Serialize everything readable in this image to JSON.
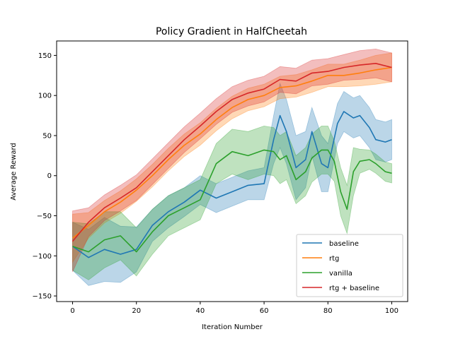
{
  "chart_data": {
    "type": "line",
    "title": "Policy Gradient in HalfCheetah",
    "xlabel": "Iteration Number",
    "ylabel": "Average Reward",
    "xlim": [
      -5,
      105
    ],
    "ylim": [
      -157,
      168
    ],
    "xticks": [
      0,
      20,
      40,
      60,
      80,
      100
    ],
    "yticks": [
      -150,
      -100,
      -50,
      0,
      50,
      100,
      150
    ],
    "grid": false,
    "legend_position": "lower-right",
    "series": [
      {
        "name": "baseline",
        "color": "#1f77b4",
        "x": [
          0,
          5,
          10,
          15,
          20,
          25,
          30,
          35,
          40,
          45,
          50,
          55,
          60,
          63,
          65,
          67,
          70,
          73,
          75,
          78,
          80,
          83,
          85,
          88,
          90,
          93,
          95,
          98,
          100
        ],
        "values": [
          -88,
          -102,
          -92,
          -98,
          -92,
          -62,
          -45,
          -33,
          -18,
          -28,
          -20,
          -12,
          -10,
          45,
          75,
          55,
          10,
          20,
          55,
          15,
          10,
          65,
          80,
          72,
          75,
          60,
          45,
          42,
          45
        ],
        "band_width": [
          30,
          35,
          40,
          35,
          28,
          20,
          20,
          18,
          18,
          18,
          18,
          18,
          20,
          30,
          40,
          40,
          40,
          35,
          30,
          35,
          30,
          25,
          25,
          25,
          25,
          25,
          25,
          25,
          25
        ]
      },
      {
        "name": "rtg",
        "color": "#ff7f0e",
        "x": [
          0,
          5,
          10,
          15,
          20,
          25,
          30,
          35,
          40,
          45,
          50,
          55,
          60,
          65,
          70,
          75,
          80,
          85,
          90,
          95,
          100
        ],
        "values": [
          -78,
          -62,
          -45,
          -33,
          -18,
          0,
          20,
          38,
          52,
          70,
          85,
          95,
          100,
          110,
          112,
          118,
          125,
          125,
          128,
          132,
          135
        ],
        "band_width": [
          30,
          16,
          14,
          14,
          14,
          14,
          14,
          14,
          14,
          14,
          14,
          14,
          14,
          14,
          14,
          14,
          14,
          14,
          16,
          18,
          18
        ]
      },
      {
        "name": "vanilla",
        "color": "#2ca02c",
        "x": [
          0,
          5,
          10,
          15,
          20,
          25,
          30,
          35,
          40,
          45,
          50,
          55,
          60,
          63,
          65,
          67,
          70,
          73,
          75,
          78,
          80,
          82,
          84,
          86,
          88,
          90,
          93,
          95,
          98,
          100
        ],
        "values": [
          -88,
          -95,
          -80,
          -75,
          -95,
          -70,
          -50,
          -40,
          -30,
          15,
          30,
          25,
          32,
          30,
          20,
          25,
          -5,
          5,
          22,
          32,
          32,
          18,
          -20,
          -42,
          5,
          18,
          20,
          15,
          5,
          3
        ],
        "band_width": [
          30,
          35,
          35,
          30,
          30,
          28,
          25,
          25,
          25,
          25,
          28,
          30,
          30,
          30,
          30,
          30,
          30,
          30,
          30,
          30,
          30,
          25,
          30,
          30,
          30,
          15,
          12,
          12,
          12,
          12
        ]
      },
      {
        "name": "rtg + baseline",
        "color": "#d62728",
        "x": [
          0,
          5,
          10,
          15,
          20,
          25,
          30,
          35,
          40,
          45,
          50,
          55,
          60,
          65,
          70,
          75,
          80,
          85,
          90,
          95,
          100
        ],
        "values": [
          -82,
          -58,
          -40,
          -28,
          -15,
          5,
          25,
          45,
          62,
          80,
          95,
          103,
          108,
          120,
          118,
          128,
          130,
          135,
          138,
          140,
          135
        ],
        "band_width": [
          38,
          18,
          16,
          16,
          16,
          16,
          16,
          16,
          16,
          16,
          16,
          16,
          16,
          16,
          16,
          16,
          16,
          16,
          18,
          18,
          18
        ]
      }
    ]
  }
}
